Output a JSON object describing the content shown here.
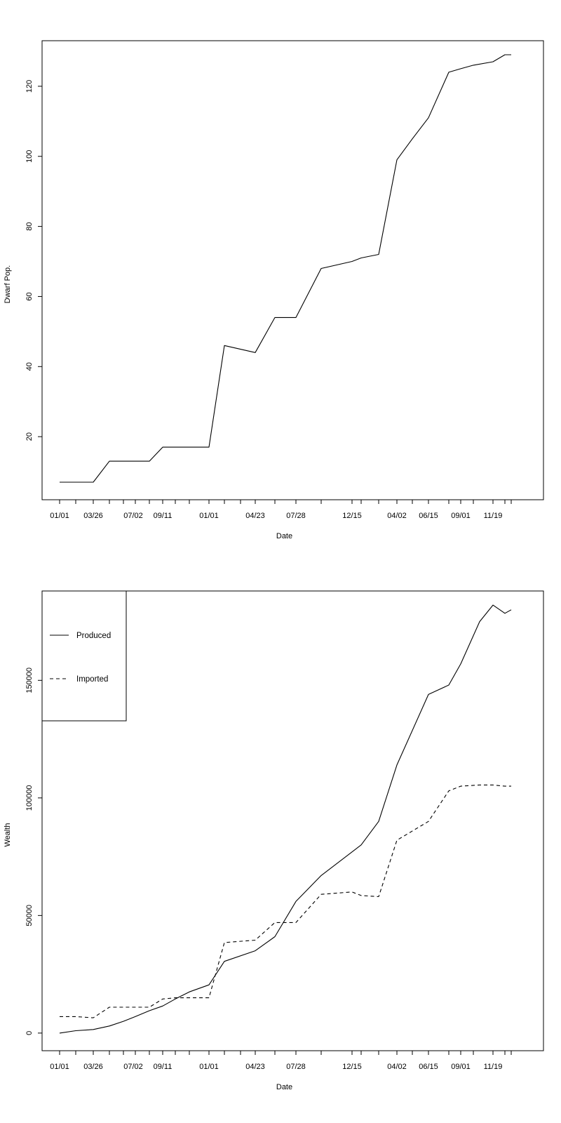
{
  "chart_data": [
    {
      "type": "line",
      "xlabel": "Date",
      "ylabel": "Dwarf Pop.",
      "ylim": [
        2,
        133
      ],
      "yticks": [
        20,
        40,
        60,
        80,
        100,
        120
      ],
      "ytick_labels": [
        "20",
        "40",
        "60",
        "80",
        "100",
        "120"
      ],
      "x_tick_labels": [
        "01/01",
        "03/26",
        "07/02",
        "09/11",
        "01/01",
        "04/23",
        "07/28",
        "12/15",
        "04/02",
        "06/15",
        "09/01",
        "11/19"
      ],
      "grid": false,
      "legend": "none",
      "series": [
        {
          "style": "solid",
          "values": [
            7,
            7,
            7,
            13,
            13,
            13,
            13,
            17,
            17,
            17,
            17,
            46,
            44,
            54,
            54,
            68,
            70,
            71,
            72,
            99,
            105,
            111,
            124,
            125,
            126,
            127,
            129,
            129
          ]
        }
      ]
    },
    {
      "type": "line",
      "xlabel": "Date",
      "ylabel": "Wealth",
      "ylim": [
        -7500,
        188000
      ],
      "yticks": [
        0,
        50000,
        100000,
        150000
      ],
      "ytick_labels": [
        "0",
        "50000",
        "100000",
        "150000"
      ],
      "x_tick_labels": [
        "01/01",
        "03/26",
        "07/02",
        "09/11",
        "01/01",
        "04/23",
        "07/28",
        "12/15",
        "04/02",
        "06/15",
        "09/01",
        "11/19"
      ],
      "grid": false,
      "legend": "top-left",
      "series": [
        {
          "name": "Produced",
          "style": "solid",
          "values": [
            0,
            1000,
            1500,
            3000,
            5000,
            7000,
            9500,
            11500,
            14500,
            17500,
            20500,
            30500,
            35000,
            41000,
            56000,
            67000,
            80000,
            90000,
            114000,
            144000,
            148000,
            157000,
            175000,
            182000,
            178500,
            180000
          ]
        },
        {
          "name": "Imported",
          "style": "dashed",
          "values": [
            7000,
            7000,
            6500,
            11000,
            11000,
            11000,
            11000,
            14500,
            15000,
            15000,
            15000,
            38500,
            39500,
            47000,
            47000,
            59000,
            60000,
            58500,
            58000,
            82000,
            90000,
            103000,
            105000,
            105500,
            105500,
            105000,
            105000
          ]
        }
      ]
    }
  ]
}
